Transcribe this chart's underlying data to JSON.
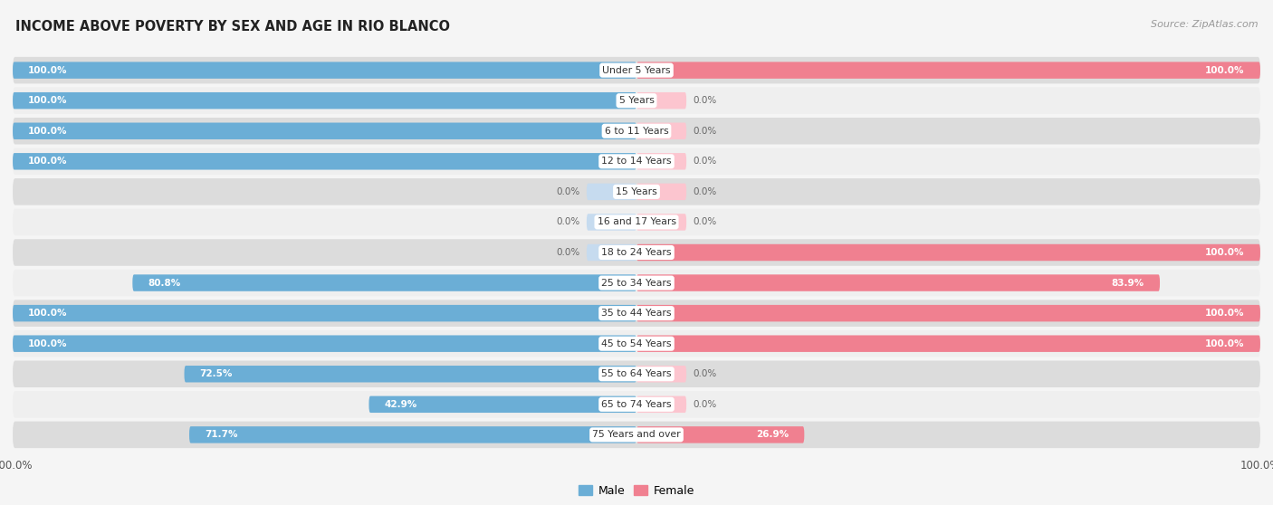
{
  "title": "INCOME ABOVE POVERTY BY SEX AND AGE IN RIO BLANCO",
  "source": "Source: ZipAtlas.com",
  "categories": [
    "Under 5 Years",
    "5 Years",
    "6 to 11 Years",
    "12 to 14 Years",
    "15 Years",
    "16 and 17 Years",
    "18 to 24 Years",
    "25 to 34 Years",
    "35 to 44 Years",
    "45 to 54 Years",
    "55 to 64 Years",
    "65 to 74 Years",
    "75 Years and over"
  ],
  "male": [
    100.0,
    100.0,
    100.0,
    100.0,
    0.0,
    0.0,
    0.0,
    80.8,
    100.0,
    100.0,
    72.5,
    42.9,
    71.7
  ],
  "female": [
    100.0,
    0.0,
    0.0,
    0.0,
    0.0,
    0.0,
    100.0,
    83.9,
    100.0,
    100.0,
    0.0,
    0.0,
    26.9
  ],
  "male_color": "#6baed6",
  "male_stub_color": "#c6dbef",
  "female_color": "#f08090",
  "female_stub_color": "#fcc5cf",
  "row_bg_dark": "#dcdcdc",
  "row_bg_light": "#efefef",
  "fig_bg": "#f5f5f5",
  "label_text_color": "#333333",
  "value_text_white": "#ffffff",
  "value_text_dark": "#666666",
  "max_val": 100.0,
  "stub_size": 8.0
}
